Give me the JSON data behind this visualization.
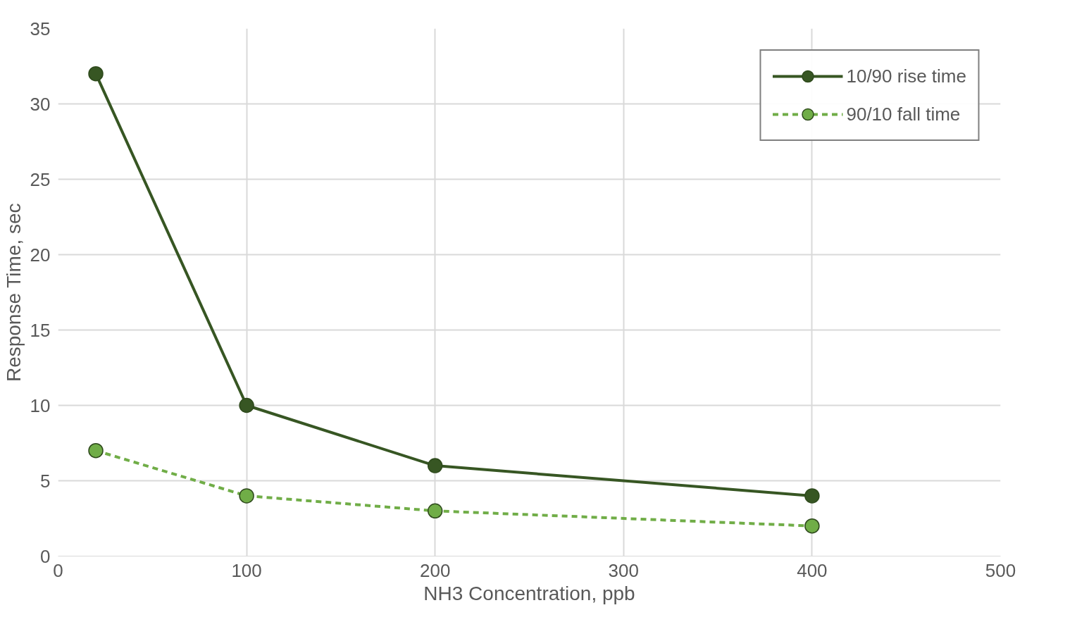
{
  "chart_data": {
    "type": "line",
    "xlabel": "NH3 Concentration, ppb",
    "ylabel": "Response Time, sec",
    "x": [
      20,
      100,
      200,
      400
    ],
    "series": [
      {
        "name": "10/90 rise time",
        "color": "#375623",
        "values": [
          32,
          10,
          6,
          4
        ],
        "line_style": "solid"
      },
      {
        "name": "90/10 fall time",
        "color": "#70ad47",
        "values": [
          7,
          4,
          3,
          2
        ],
        "line_style": "dashed"
      }
    ],
    "xlim": [
      0,
      500
    ],
    "ylim": [
      0,
      35
    ],
    "xticks": [
      0,
      100,
      200,
      300,
      400,
      500
    ],
    "yticks": [
      0,
      5,
      10,
      15,
      20,
      25,
      30,
      35
    ],
    "grid": true,
    "legend": "top right",
    "marker": "circle"
  }
}
